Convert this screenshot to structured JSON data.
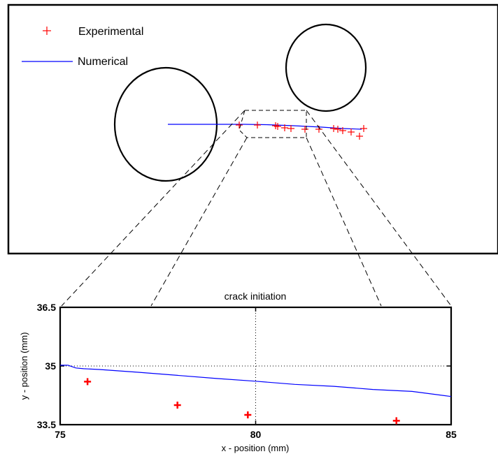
{
  "legend": {
    "experimental": "Experimental",
    "numerical": "Numerical",
    "placement": "top-left"
  },
  "colors": {
    "experimental": "#ff0000",
    "numerical": "#0000ff",
    "outline": "#000000"
  },
  "chart_data": [
    {
      "type": "scatter",
      "title": "",
      "note": "Specimen overview with two holes and crack path",
      "series": [
        {
          "name": "Experimental",
          "type": "scatter",
          "points_count": 14
        },
        {
          "name": "Numerical",
          "type": "line"
        }
      ]
    },
    {
      "type": "line",
      "title": "crack initiation",
      "xlabel": "x - position (mm)",
      "ylabel": "y - position (mm)",
      "xlim": [
        75,
        85
      ],
      "ylim": [
        33.5,
        36.5
      ],
      "xticks": [
        "75",
        "80",
        "85"
      ],
      "yticks": [
        "33.5",
        "35",
        "36.5"
      ],
      "grid": "dotted at center",
      "series": [
        {
          "name": "Numerical",
          "type": "line",
          "x": [
            75.0,
            75.2,
            75.4,
            75.6,
            76,
            77,
            78,
            79,
            80,
            81,
            82,
            83,
            84,
            85
          ],
          "y": [
            35.02,
            35.02,
            34.95,
            34.93,
            34.91,
            34.84,
            34.76,
            34.68,
            34.61,
            34.53,
            34.48,
            34.4,
            34.35,
            34.22
          ]
        },
        {
          "name": "Experimental",
          "type": "scatter",
          "x": [
            75.7,
            78.0,
            79.8,
            83.6
          ],
          "y": [
            34.6,
            34.0,
            33.75,
            33.6
          ]
        }
      ]
    }
  ]
}
